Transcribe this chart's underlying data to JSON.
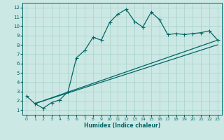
{
  "xlabel": "Humidex (Indice chaleur)",
  "ylabel": "",
  "bg_color": "#cce8e4",
  "grid_color": "#b0d8d0",
  "line_color": "#006666",
  "xlim": [
    -0.5,
    23.5
  ],
  "ylim": [
    0.5,
    12.5
  ],
  "xticks": [
    0,
    1,
    2,
    3,
    4,
    5,
    6,
    7,
    8,
    9,
    10,
    11,
    12,
    13,
    14,
    15,
    16,
    17,
    18,
    19,
    20,
    21,
    22,
    23
  ],
  "yticks": [
    1,
    2,
    3,
    4,
    5,
    6,
    7,
    8,
    9,
    10,
    11,
    12
  ],
  "line1_x": [
    0,
    1,
    2,
    3,
    4,
    5,
    6,
    7,
    8,
    9,
    10,
    11,
    12,
    13,
    14,
    15,
    16,
    17,
    18,
    19,
    20,
    21,
    22,
    23
  ],
  "line1_y": [
    2.5,
    1.7,
    1.2,
    1.8,
    2.1,
    3.0,
    6.6,
    7.4,
    8.8,
    8.5,
    10.4,
    11.3,
    11.8,
    10.5,
    9.9,
    11.5,
    10.7,
    9.1,
    9.2,
    9.1,
    9.2,
    9.3,
    9.5,
    8.5
  ],
  "line2_x": [
    1,
    23
  ],
  "line2_y": [
    1.7,
    8.5
  ],
  "line3_x": [
    1,
    23
  ],
  "line3_y": [
    1.7,
    8.0
  ],
  "marker_size": 2.0,
  "linewidth": 0.9
}
